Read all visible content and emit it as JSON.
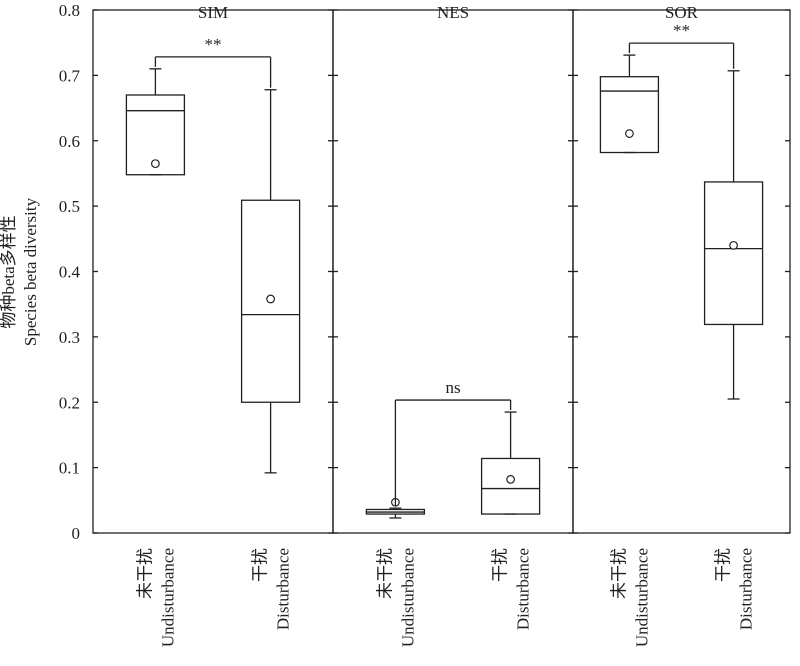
{
  "chart_data": {
    "type": "boxplot",
    "ylabel_cn": "物种beta多样性",
    "ylabel_en": "Species beta diversity",
    "ylim": [
      0,
      0.8
    ],
    "yticks": [
      0,
      0.1,
      0.2,
      0.3,
      0.4,
      0.5,
      0.6,
      0.7,
      0.8
    ],
    "ytick_labels": [
      "0",
      "0.1",
      "0.2",
      "0.3",
      "0.4",
      "0.5",
      "0.6",
      "0.7",
      "0.8"
    ],
    "panels": [
      {
        "title": "SIM",
        "significance": "**",
        "groups": [
          {
            "label_cn": "未干扰",
            "label_en": "Undisturbance",
            "min": 0.548,
            "q1": 0.548,
            "median": 0.646,
            "q3": 0.67,
            "max": 0.71,
            "mean": 0.565
          },
          {
            "label_cn": "干扰",
            "label_en": "Disturbance",
            "min": 0.092,
            "q1": 0.2,
            "median": 0.334,
            "q3": 0.509,
            "max": 0.678,
            "mean": 0.358
          }
        ]
      },
      {
        "title": "NES",
        "significance": "ns",
        "groups": [
          {
            "label_cn": "未干扰",
            "label_en": "Undisturbance",
            "min": 0.023,
            "q1": 0.029,
            "median": 0.032,
            "q3": 0.036,
            "max": 0.038,
            "mean": 0.047
          },
          {
            "label_cn": "干扰",
            "label_en": "Disturbance",
            "min": 0.029,
            "q1": 0.029,
            "median": 0.068,
            "q3": 0.114,
            "max": 0.185,
            "mean": 0.082
          }
        ]
      },
      {
        "title": "SOR",
        "significance": "**",
        "groups": [
          {
            "label_cn": "未干扰",
            "label_en": "Undisturbance",
            "min": 0.582,
            "q1": 0.582,
            "median": 0.676,
            "q3": 0.698,
            "max": 0.731,
            "mean": 0.611
          },
          {
            "label_cn": "干扰",
            "label_en": "Disturbance",
            "min": 0.205,
            "q1": 0.319,
            "median": 0.435,
            "q3": 0.537,
            "max": 0.707,
            "mean": 0.44
          }
        ]
      }
    ]
  }
}
